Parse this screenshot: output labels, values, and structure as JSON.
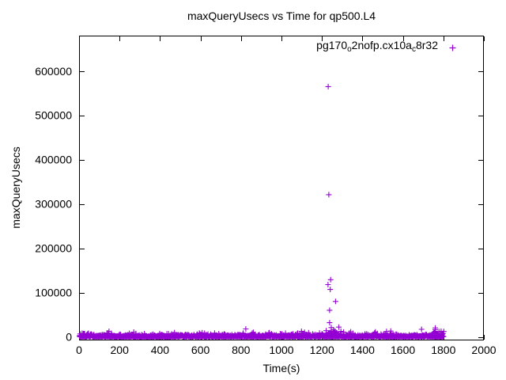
{
  "window": {
    "background": "#ffffff",
    "foreground": "#000000"
  },
  "chart_data": {
    "type": "scatter",
    "title": "maxQueryUsecs vs Time for qp500.L4",
    "xlabel": "Time(s)",
    "ylabel": "maxQueryUsecs",
    "xlim": [
      0,
      2000
    ],
    "ylim": [
      -8000,
      680000
    ],
    "x_ticks": [
      0,
      200,
      400,
      600,
      800,
      1000,
      1200,
      1400,
      1600,
      1800,
      2000
    ],
    "y_ticks": [
      0,
      100000,
      200000,
      300000,
      400000,
      500000,
      600000
    ],
    "grid": false,
    "legend_position": "top-right-inside",
    "tick_style": "inward-mirrored",
    "series": [
      {
        "name": "pg170_o2nofp.cx10a_c8r32",
        "label_segments": [
          {
            "text": "pg170"
          },
          {
            "text": "o",
            "subscript": true
          },
          {
            "text": "2nofp.cx10a"
          },
          {
            "text": "c",
            "subscript": true
          },
          {
            "text": "8r32"
          }
        ],
        "marker": "plus",
        "color": "#9400D3",
        "spike_points": [
          [
            1231,
            565000
          ],
          [
            1234,
            321000
          ],
          [
            1243,
            129000
          ],
          [
            1230,
            118000
          ],
          [
            1241,
            107000
          ],
          [
            1267,
            80000
          ],
          [
            1238,
            60000
          ],
          [
            1238,
            32000
          ],
          [
            1246,
            21000
          ],
          [
            824,
            18000
          ],
          [
            1760,
            20000
          ],
          [
            1692,
            17000
          ],
          [
            1540,
            13000
          ],
          [
            1778,
            12000
          ],
          [
            1342,
            11500
          ],
          [
            1307,
            11000
          ],
          [
            1755,
            10000
          ],
          [
            940,
            9000
          ],
          [
            1460,
            8800
          ],
          [
            1100,
            8500
          ],
          [
            1020,
            8300
          ],
          [
            620,
            8200
          ],
          [
            160,
            8000
          ],
          [
            1542,
            8000
          ]
        ],
        "band": {
          "description": "dense band of per-interval max query latency near zero",
          "x_min": 2,
          "x_max": 1802,
          "count": 1500,
          "y_scale": 1900,
          "y_max": 12500,
          "seed": 1234,
          "clusters": [
            {
              "x_min": 1215,
              "x_max": 1285,
              "count": 50,
              "y_scale": 5500,
              "y_max": 22000
            },
            {
              "x_min": 1748,
              "x_max": 1795,
              "count": 40,
              "y_scale": 4500,
              "y_max": 16000
            }
          ]
        }
      }
    ]
  }
}
